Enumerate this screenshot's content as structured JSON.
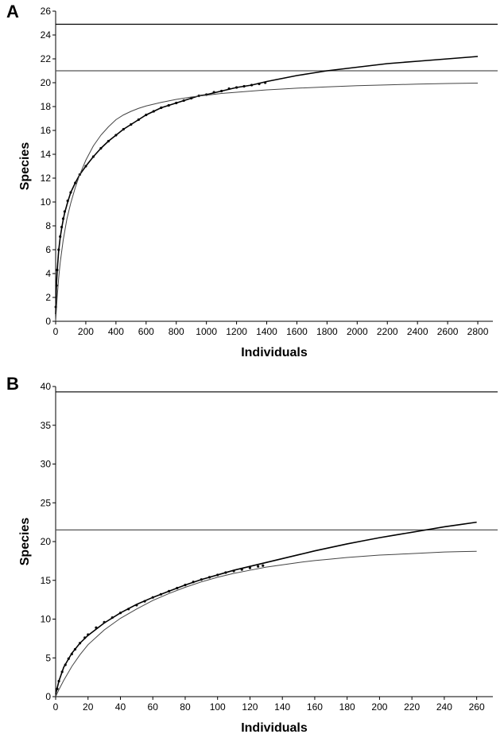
{
  "chart_data": [
    {
      "panel": "A",
      "type": "line",
      "xlabel": "Individuals",
      "ylabel": "Species",
      "xlim": [
        0,
        2900
      ],
      "ylim": [
        0,
        26
      ],
      "xticks": [
        0,
        200,
        400,
        600,
        800,
        1000,
        1200,
        1400,
        1600,
        1800,
        2000,
        2200,
        2400,
        2600,
        2800
      ],
      "yticks": [
        0,
        2,
        4,
        6,
        8,
        10,
        12,
        14,
        16,
        18,
        20,
        22,
        24,
        26
      ],
      "grid": false,
      "hlines": [
        {
          "y": 24.9,
          "color": "#000000"
        },
        {
          "y": 21.0,
          "color": "#555555"
        }
      ],
      "series": [
        {
          "kind": "points",
          "x": [
            1,
            5,
            10,
            20,
            30,
            40,
            50,
            60,
            80,
            100,
            130,
            160,
            200,
            250,
            300,
            350,
            400,
            450,
            500,
            550,
            600,
            650,
            700,
            750,
            800,
            850,
            900,
            950,
            1000,
            1050,
            1100,
            1150,
            1200,
            1250,
            1300,
            1350,
            1390
          ],
          "y": [
            1.2,
            3.0,
            4.3,
            6.0,
            7.1,
            7.9,
            8.6,
            9.2,
            10.1,
            10.8,
            11.6,
            12.3,
            13.0,
            13.8,
            14.5,
            15.1,
            15.6,
            16.1,
            16.5,
            16.9,
            17.3,
            17.6,
            17.9,
            18.1,
            18.3,
            18.5,
            18.7,
            18.9,
            19.0,
            19.2,
            19.3,
            19.5,
            19.6,
            19.7,
            19.8,
            19.9,
            20.0
          ],
          "color": "#111111"
        },
        {
          "kind": "line",
          "x": [
            0,
            5,
            10,
            20,
            30,
            40,
            50,
            60,
            80,
            100,
            130,
            160,
            200,
            250,
            300,
            350,
            400,
            450,
            500,
            550,
            600,
            650,
            700,
            750,
            800,
            850,
            900,
            950,
            1000,
            1100,
            1200,
            1300,
            1400,
            1500,
            1600,
            1700,
            1800,
            1900,
            2000,
            2100,
            2200,
            2300,
            2400,
            2500,
            2600,
            2700,
            2800
          ],
          "y": [
            0.6,
            2.9,
            4.2,
            5.9,
            7.0,
            7.8,
            8.5,
            9.1,
            10.0,
            10.8,
            11.6,
            12.3,
            13.0,
            13.8,
            14.5,
            15.1,
            15.6,
            16.1,
            16.5,
            16.9,
            17.3,
            17.6,
            17.9,
            18.1,
            18.3,
            18.5,
            18.7,
            18.9,
            19.0,
            19.3,
            19.6,
            19.8,
            20.1,
            20.35,
            20.6,
            20.8,
            21.0,
            21.15,
            21.3,
            21.45,
            21.6,
            21.7,
            21.8,
            21.9,
            22.0,
            22.1,
            22.2
          ],
          "color": "#000000",
          "width": 1.6
        },
        {
          "kind": "line",
          "x": [
            0,
            10,
            20,
            30,
            50,
            75,
            100,
            130,
            160,
            200,
            250,
            300,
            350,
            400,
            450,
            500,
            550,
            600,
            700,
            800,
            900,
            1000,
            1100,
            1200,
            1300,
            1400,
            1500,
            1600,
            1800,
            2000,
            2200,
            2400,
            2600,
            2800
          ],
          "y": [
            0.0,
            2.0,
            3.6,
            4.9,
            6.8,
            8.6,
            9.9,
            11.2,
            12.3,
            13.5,
            14.7,
            15.6,
            16.3,
            16.9,
            17.3,
            17.6,
            17.85,
            18.05,
            18.35,
            18.6,
            18.8,
            18.95,
            19.1,
            19.2,
            19.3,
            19.4,
            19.47,
            19.54,
            19.65,
            19.75,
            19.82,
            19.88,
            19.93,
            19.97
          ],
          "color": "#444444",
          "width": 1.0
        }
      ]
    },
    {
      "panel": "B",
      "type": "line",
      "xlabel": "Individuals",
      "ylabel": "Species",
      "xlim": [
        0,
        270
      ],
      "ylim": [
        0,
        40
      ],
      "xticks": [
        0,
        20,
        40,
        60,
        80,
        100,
        120,
        140,
        160,
        180,
        200,
        220,
        240,
        260
      ],
      "yticks": [
        0,
        5,
        10,
        15,
        20,
        25,
        30,
        35,
        40
      ],
      "grid": false,
      "hlines": [
        {
          "y": 39.3,
          "color": "#000000"
        },
        {
          "y": 21.5,
          "color": "#555555"
        }
      ],
      "series": [
        {
          "kind": "points",
          "x": [
            1,
            2,
            4,
            6,
            8,
            10,
            12,
            15,
            18,
            20,
            25,
            30,
            35,
            40,
            45,
            50,
            55,
            60,
            65,
            70,
            75,
            80,
            85,
            90,
            95,
            100,
            105,
            110,
            115,
            120,
            125,
            128
          ],
          "y": [
            1.0,
            2.0,
            3.2,
            4.1,
            4.9,
            5.5,
            6.1,
            6.9,
            7.6,
            8.0,
            8.9,
            9.6,
            10.2,
            10.8,
            11.3,
            11.8,
            12.3,
            12.8,
            13.2,
            13.6,
            14.0,
            14.4,
            14.8,
            15.1,
            15.4,
            15.7,
            16.0,
            16.2,
            16.4,
            16.6,
            16.8,
            16.9
          ],
          "color": "#111111"
        },
        {
          "kind": "line",
          "x": [
            0,
            2,
            5,
            10,
            15,
            20,
            30,
            40,
            50,
            60,
            70,
            80,
            90,
            100,
            110,
            120,
            130,
            140,
            150,
            160,
            170,
            180,
            190,
            200,
            210,
            220,
            230,
            240,
            250,
            260
          ],
          "y": [
            0.3,
            2.0,
            3.8,
            5.6,
            6.9,
            7.9,
            9.5,
            10.8,
            11.9,
            12.8,
            13.6,
            14.4,
            15.1,
            15.7,
            16.3,
            16.8,
            17.3,
            17.8,
            18.3,
            18.8,
            19.25,
            19.7,
            20.1,
            20.5,
            20.85,
            21.2,
            21.55,
            21.9,
            22.2,
            22.5
          ],
          "color": "#000000",
          "width": 1.6
        },
        {
          "kind": "line",
          "x": [
            0,
            2,
            5,
            10,
            15,
            20,
            30,
            40,
            50,
            60,
            70,
            80,
            90,
            100,
            110,
            120,
            130,
            140,
            150,
            160,
            170,
            180,
            190,
            200,
            210,
            220,
            230,
            240,
            250,
            260
          ],
          "y": [
            0.0,
            0.9,
            2.1,
            3.9,
            5.4,
            6.7,
            8.6,
            10.1,
            11.3,
            12.4,
            13.3,
            14.1,
            14.8,
            15.4,
            15.9,
            16.3,
            16.7,
            17.0,
            17.3,
            17.55,
            17.75,
            17.95,
            18.1,
            18.25,
            18.35,
            18.45,
            18.55,
            18.65,
            18.7,
            18.75
          ],
          "color": "#444444",
          "width": 1.0
        }
      ]
    }
  ]
}
